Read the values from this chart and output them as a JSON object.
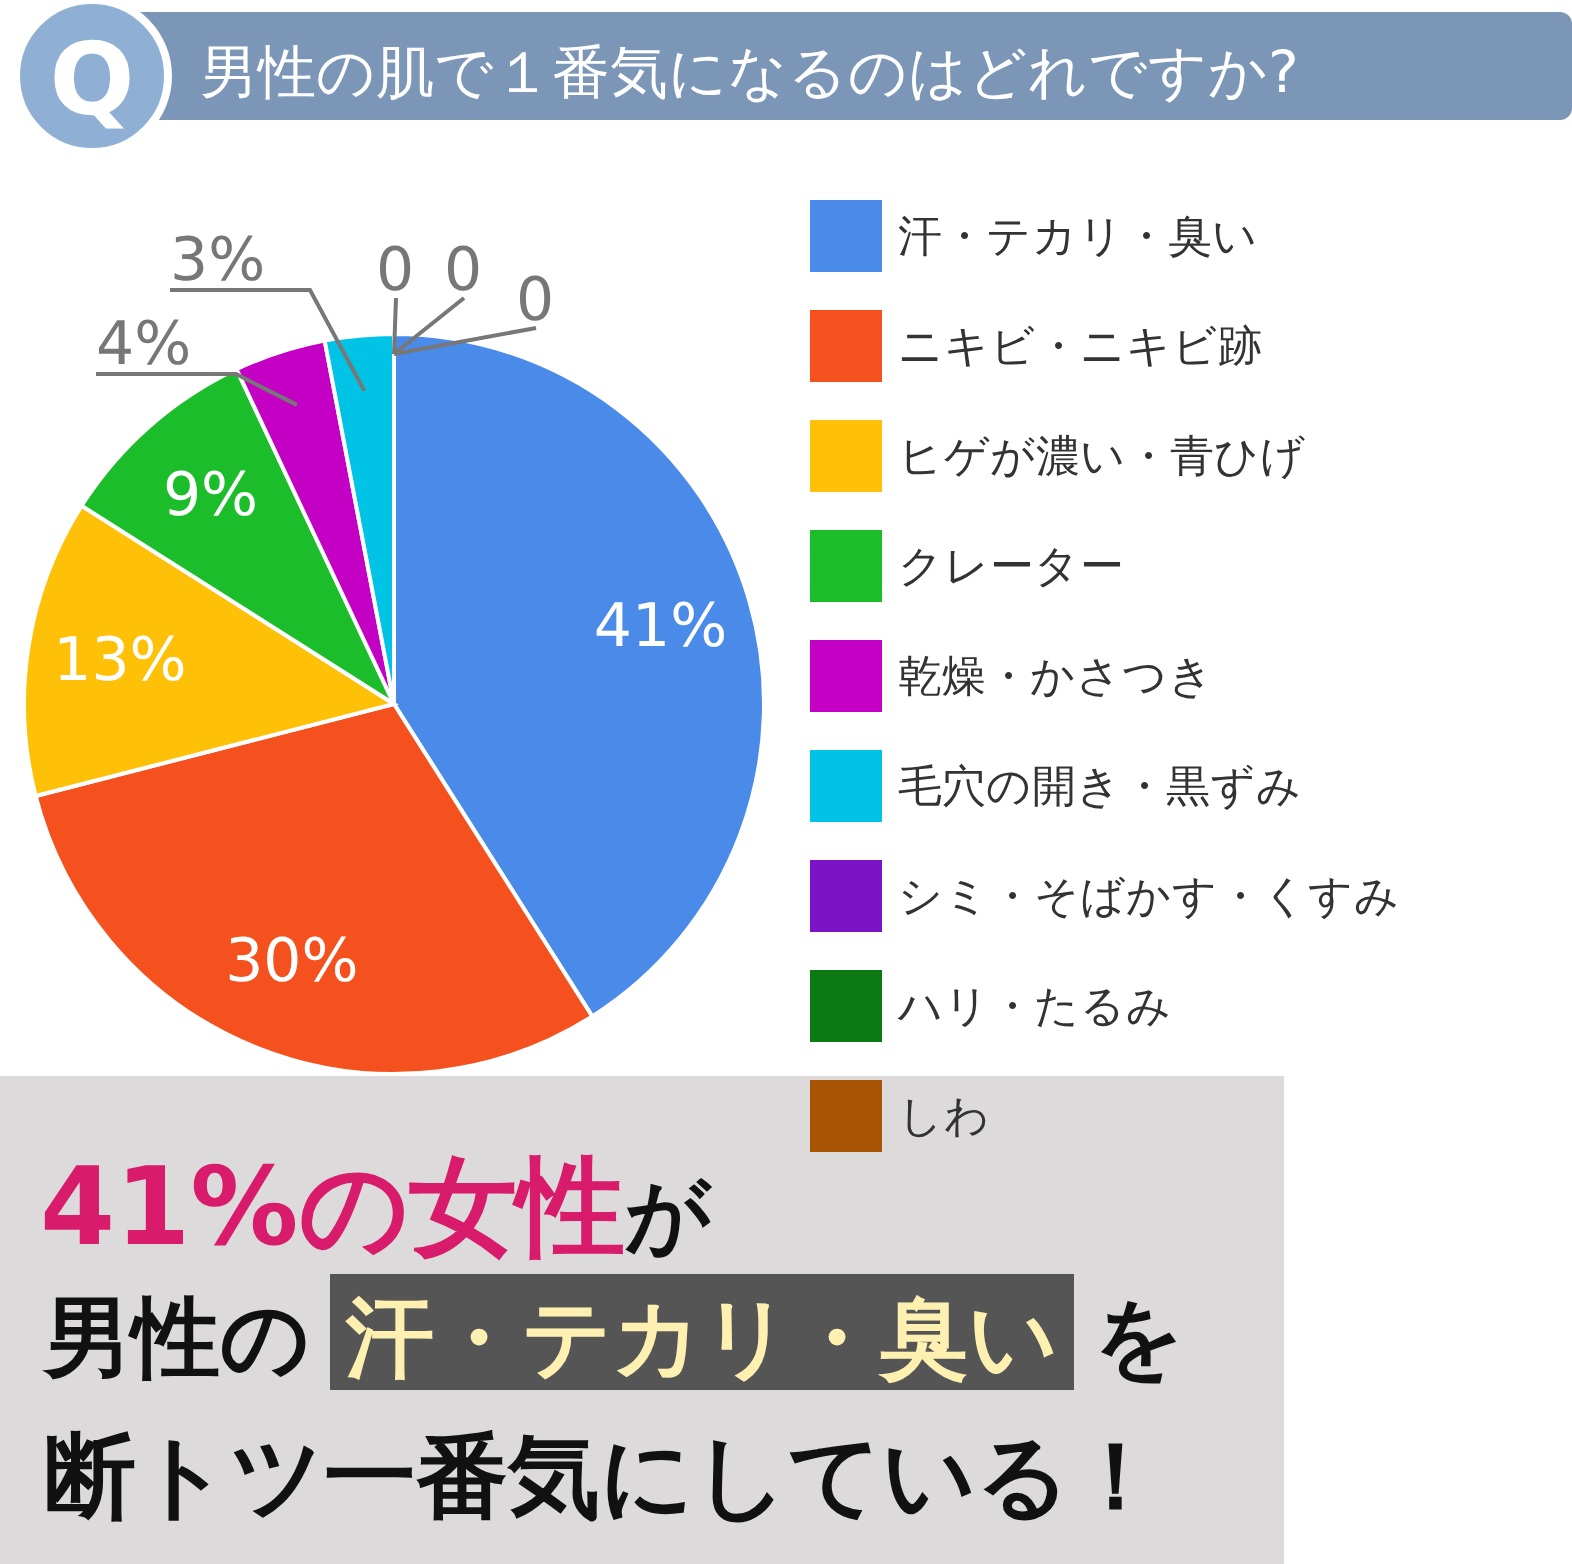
{
  "chart_data": {
    "type": "pie",
    "title": "男性の肌で１番気になるのはどれですか?",
    "categories": [
      "汗・テカリ・臭い",
      "ニキビ・ニキビ跡",
      "ヒゲが濃い・青ひげ",
      "クレーター",
      "乾燥・かさつき",
      "毛穴の開き・黒ずみ",
      "シミ・そばかす・くすみ",
      "ハリ・たるみ",
      "しわ"
    ],
    "values": [
      41,
      30,
      13,
      9,
      4,
      3,
      0,
      0,
      0
    ],
    "value_labels": [
      "41%",
      "30%",
      "13%",
      "9%",
      "4%",
      "3%",
      "0",
      "0",
      "0"
    ],
    "colors": [
      "#4a8ae8",
      "#f4511e",
      "#ffc107",
      "#1bbe2a",
      "#c400c4",
      "#00c3e6",
      "#7a14c4",
      "#0c7a14",
      "#a85404"
    ],
    "legend": "right",
    "annotations": [
      "Q",
      "41%の女性",
      "が",
      "男性の",
      "汗・テカリ・臭い",
      "を",
      "断トツ一番気にしている！"
    ]
  }
}
